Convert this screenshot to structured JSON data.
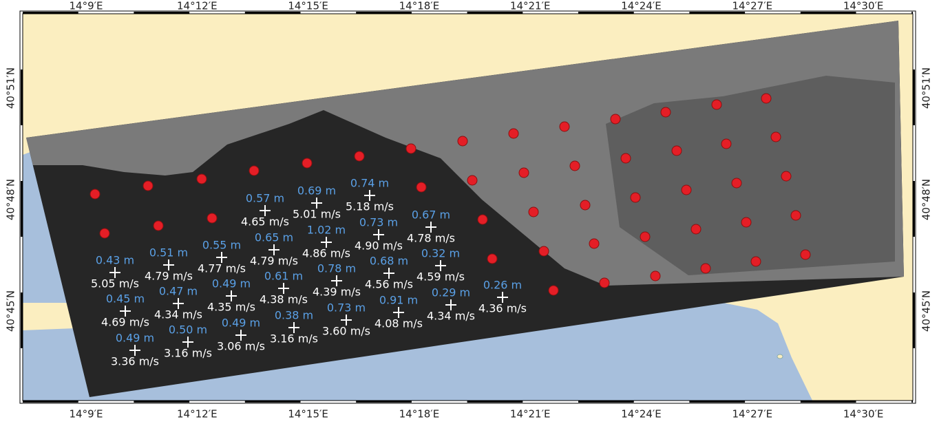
{
  "map": {
    "lon_ticks": [
      "14°9′E",
      "14°12′E",
      "14°15′E",
      "14°18′E",
      "14°21′E",
      "14°24′E",
      "14°27′E",
      "14°30′E"
    ],
    "lat_ticks": [
      "40°51′N",
      "40°48′N",
      "40°45′N"
    ],
    "points": [
      {
        "height": "0.57 m",
        "speed": "4.65 m/s"
      },
      {
        "height": "0.69 m",
        "speed": "5.01 m/s"
      },
      {
        "height": "0.74 m",
        "speed": "5.18 m/s"
      },
      {
        "height": "0.67 m",
        "speed": "4.78 m/s"
      },
      {
        "height": "0.73 m",
        "speed": "4.90 m/s"
      },
      {
        "height": "1.02 m",
        "speed": "4.86 m/s"
      },
      {
        "height": "0.65 m",
        "speed": "4.79 m/s"
      },
      {
        "height": "0.55 m",
        "speed": "4.77 m/s"
      },
      {
        "height": "0.51 m",
        "speed": "4.79 m/s"
      },
      {
        "height": "0.43 m",
        "speed": "5.05 m/s"
      },
      {
        "height": "0.32 m",
        "speed": "4.59 m/s"
      },
      {
        "height": "0.68 m",
        "speed": "4.56 m/s"
      },
      {
        "height": "0.78 m",
        "speed": "4.39 m/s"
      },
      {
        "height": "0.61 m",
        "speed": "4.38 m/s"
      },
      {
        "height": "0.49 m",
        "speed": "4.35 m/s"
      },
      {
        "height": "0.47 m",
        "speed": "4.34 m/s"
      },
      {
        "height": "0.45 m",
        "speed": "4.69 m/s"
      },
      {
        "height": "0.26 m",
        "speed": "4.36 m/s"
      },
      {
        "height": "0.29 m",
        "speed": "4.34 m/s"
      },
      {
        "height": "0.91 m",
        "speed": "4.08 m/s"
      },
      {
        "height": "0.73 m",
        "speed": "3.60 m/s"
      },
      {
        "height": "0.38 m",
        "speed": "3.16 m/s"
      },
      {
        "height": "0.49 m",
        "speed": "3.06 m/s"
      },
      {
        "height": "0.50 m",
        "speed": "3.16 m/s"
      },
      {
        "height": "0.49 m",
        "speed": "3.36 m/s"
      }
    ]
  }
}
